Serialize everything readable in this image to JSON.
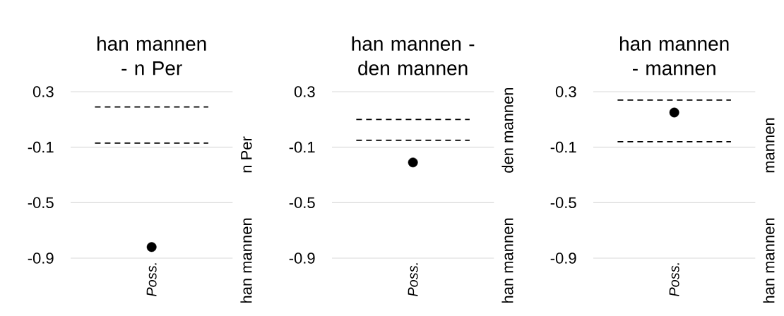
{
  "chart_data": [
    {
      "type": "scatter",
      "title": "han mannen - n Per",
      "categories": [
        "Poss."
      ],
      "values": [
        -0.82
      ],
      "color": "#000000",
      "marker": "circle",
      "ylim": [
        -0.9,
        0.3
      ],
      "yticks": [
        -0.9,
        -0.5,
        -0.1,
        0.3
      ],
      "grid": "y",
      "ref_lines": [
        {
          "axis": "y",
          "value": 0.19,
          "color": "#000000",
          "line_style": "dashed"
        },
        {
          "axis": "y",
          "value": -0.07,
          "color": "#000000",
          "line_style": "dashed"
        }
      ],
      "annotations": [
        "n Per",
        "han mannen"
      ]
    },
    {
      "type": "scatter",
      "title": "han mannen - den mannen",
      "categories": [
        "Poss."
      ],
      "values": [
        -0.21
      ],
      "color": "#000000",
      "marker": "circle",
      "ylim": [
        -0.9,
        0.3
      ],
      "yticks": [
        -0.9,
        -0.5,
        -0.1,
        0.3
      ],
      "grid": "y",
      "ref_lines": [
        {
          "axis": "y",
          "value": 0.1,
          "color": "#000000",
          "line_style": "dashed"
        },
        {
          "axis": "y",
          "value": -0.05,
          "color": "#000000",
          "line_style": "dashed"
        }
      ],
      "annotations": [
        "den mannen",
        "han mannen"
      ]
    },
    {
      "type": "scatter",
      "title": "han mannen - mannen",
      "categories": [
        "Poss."
      ],
      "values": [
        0.15
      ],
      "color": "#000000",
      "marker": "circle",
      "ylim": [
        -0.9,
        0.3
      ],
      "yticks": [
        -0.9,
        -0.5,
        -0.1,
        0.3
      ],
      "grid": "y",
      "ref_lines": [
        {
          "axis": "y",
          "value": 0.24,
          "color": "#000000",
          "line_style": "dashed"
        },
        {
          "axis": "y",
          "value": -0.06,
          "color": "#000000",
          "line_style": "dashed"
        }
      ],
      "annotations": [
        "mannen",
        "han mannen"
      ]
    }
  ]
}
